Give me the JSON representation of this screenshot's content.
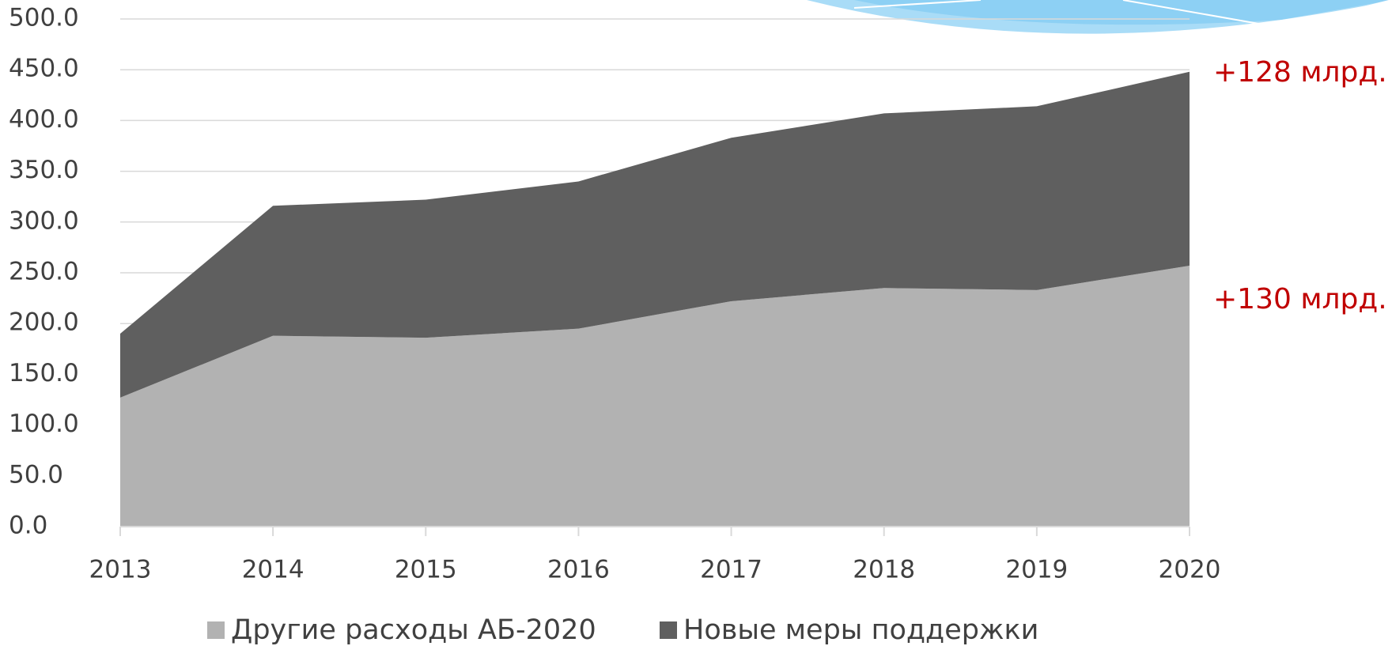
{
  "chart_data": {
    "type": "stacked_area",
    "categories": [
      "2013",
      "2014",
      "2015",
      "2016",
      "2017",
      "2018",
      "2019",
      "2020"
    ],
    "series": [
      {
        "name": "Другие расходы АБ-2020",
        "color": "#b2b2b2",
        "values": [
          127,
          188,
          186,
          195,
          222,
          235,
          233,
          257
        ]
      },
      {
        "name": "Новые меры поддержки",
        "color": "#5f5f5f",
        "values": [
          63,
          128,
          136,
          145,
          161,
          172,
          181,
          191
        ]
      }
    ],
    "ylim": [
      0,
      500
    ],
    "yticks": [
      {
        "value": 0,
        "label": "0.0"
      },
      {
        "value": 50,
        "label": "50.0"
      },
      {
        "value": 100,
        "label": "100.0"
      },
      {
        "value": 150,
        "label": "150.0"
      },
      {
        "value": 200,
        "label": "200.0"
      },
      {
        "value": 250,
        "label": "250.0"
      },
      {
        "value": 300,
        "label": "300.0"
      },
      {
        "value": 350,
        "label": "350.0"
      },
      {
        "value": 400,
        "label": "400.0"
      },
      {
        "value": 450,
        "label": "450.0"
      },
      {
        "value": 500,
        "label": "500.0"
      }
    ],
    "grid": true,
    "annotations": [
      "+128 млрд.",
      "+130 млрд."
    ],
    "annotation_color": "#c00000",
    "legend": "bottom"
  }
}
